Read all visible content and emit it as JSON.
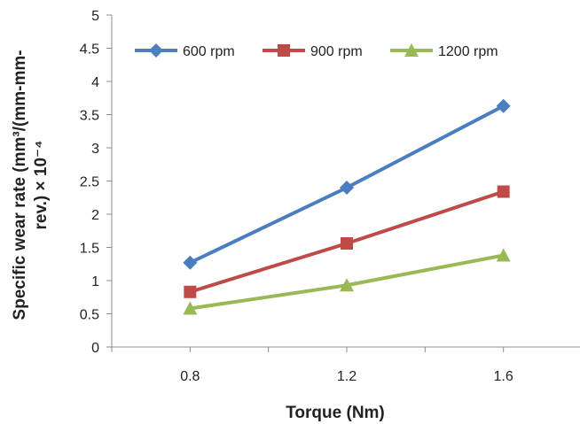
{
  "chart_data": {
    "type": "line",
    "x": [
      0.8,
      1.2,
      1.6
    ],
    "x_tick_labels": [
      "0.8",
      "1.2",
      "1.6"
    ],
    "xlim": [
      0.6,
      1.8
    ],
    "ylim": [
      0,
      5
    ],
    "y_ticks": [
      0,
      0.5,
      1,
      1.5,
      2,
      2.5,
      3,
      3.5,
      4,
      4.5,
      5
    ],
    "y_tick_labels": [
      "0",
      "0.5",
      "1",
      "1.5",
      "2",
      "2.5",
      "3",
      "3.5",
      "4",
      "4.5",
      "5"
    ],
    "xlabel": "Torque (Nm)",
    "ylabel_line1": "Specific wear rate (mm³/(mm-mm-",
    "ylabel_line2": "rev.) × 10⁻⁴",
    "grid": false,
    "legend_position": "top",
    "series": [
      {
        "name": "600 rpm",
        "values": [
          1.27,
          2.4,
          3.63
        ],
        "color": "#4a7ebf",
        "marker": "diamond"
      },
      {
        "name": "900 rpm",
        "values": [
          0.83,
          1.56,
          2.34
        ],
        "color": "#be4b48",
        "marker": "square"
      },
      {
        "name": "1200 rpm",
        "values": [
          0.58,
          0.93,
          1.38
        ],
        "color": "#98b954",
        "marker": "triangle"
      }
    ]
  }
}
